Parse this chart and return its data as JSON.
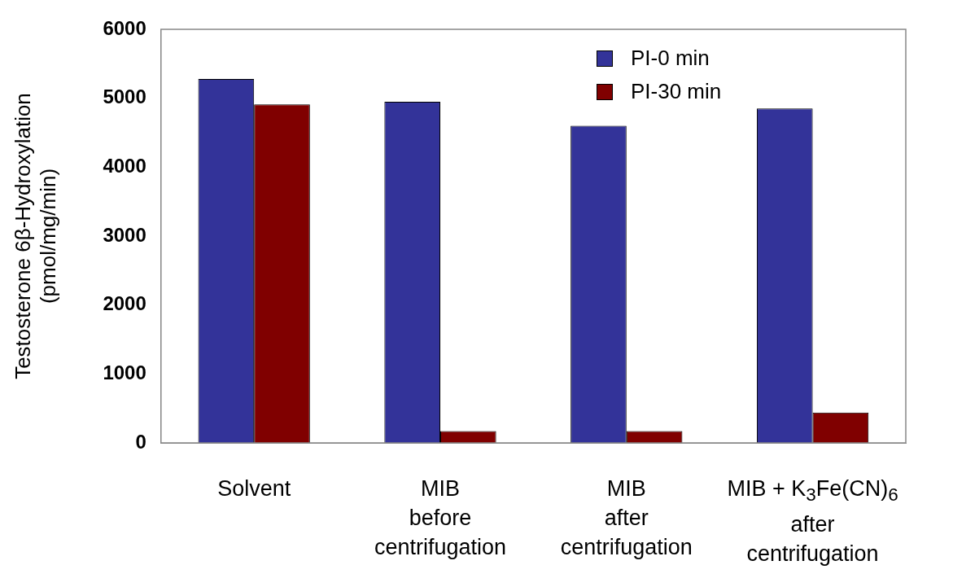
{
  "chart_data": {
    "type": "bar",
    "ylabel": "Testosterone 6β-Hydroxylation\n(pmol/mg/min)",
    "categories": [
      "Solvent",
      "MIB\nbefore\ncentrifugation",
      "MIB\nafter\ncentrifugation",
      "MIB + K$_{3}$Fe(CN)$_{6}$\nafter\ncentrifugation"
    ],
    "series": [
      {
        "name": "PI-0 min",
        "color": "#333399",
        "values": [
          5280,
          4950,
          4600,
          4850
        ]
      },
      {
        "name": "PI-30 min",
        "color": "#800000",
        "values": [
          4910,
          170,
          170,
          440
        ]
      }
    ],
    "ylim": [
      0,
      6000
    ],
    "yticks": [
      0,
      1000,
      2000,
      3000,
      4000,
      5000,
      6000
    ],
    "grid": false,
    "legend": "top right"
  }
}
